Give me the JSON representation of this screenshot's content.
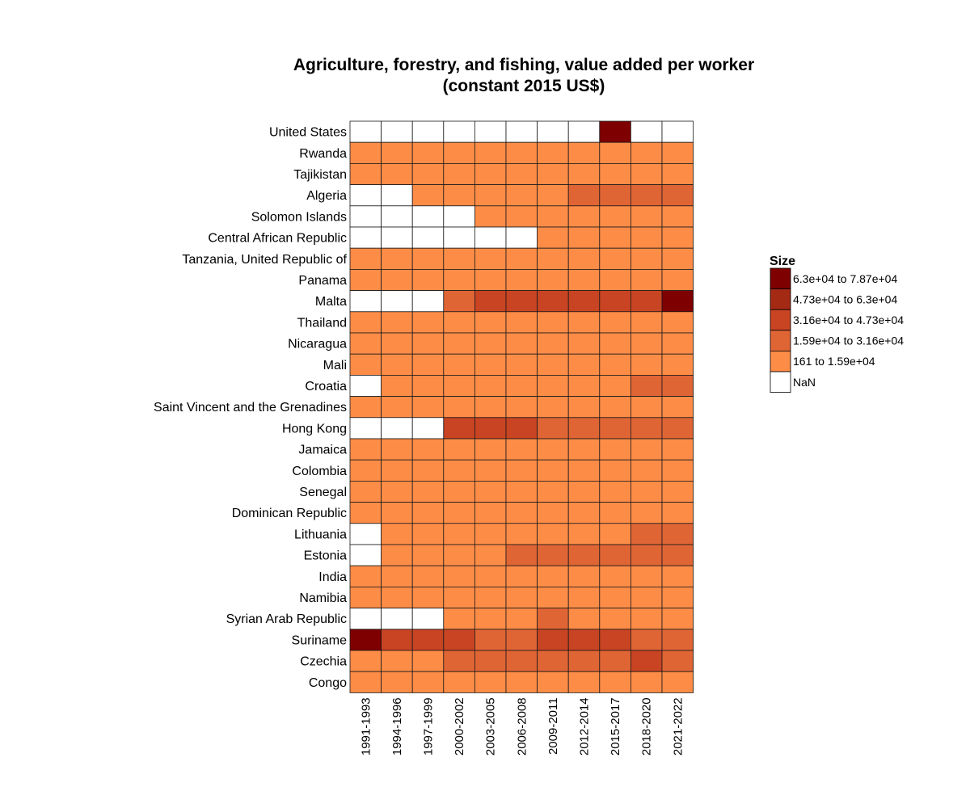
{
  "chart_data": {
    "type": "heatmap",
    "title_line1": "Agriculture, forestry, and fishing, value added per worker",
    "title_line2": "(constant 2015 US$)",
    "x_categories": [
      "1991-1993",
      "1994-1996",
      "1997-1999",
      "2000-2002",
      "2003-2005",
      "2006-2008",
      "2009-2011",
      "2012-2014",
      "2015-2017",
      "2018-2020",
      "2021-2022"
    ],
    "y_categories": [
      "United States",
      "Rwanda",
      "Tajikistan",
      "Algeria",
      "Solomon Islands",
      "Central African Republic",
      "Tanzania, United Republic of",
      "Panama",
      "Malta",
      "Thailand",
      "Nicaragua",
      "Mali",
      "Croatia",
      "Saint Vincent and the Grenadines",
      "Hong Kong",
      "Jamaica",
      "Colombia",
      "Senegal",
      "Dominican Republic",
      "Lithuania",
      "Estonia",
      "India",
      "Namibia",
      "Syrian Arab Republic",
      "Suriname",
      "Czechia",
      "Congo"
    ],
    "legend": {
      "title": "Size",
      "placement": "right",
      "bins": [
        {
          "label": "6.3e+04 to 7.87e+04",
          "color": "#7f0000"
        },
        {
          "label": "4.73e+04 to 6.3e+04",
          "color": "#a52a14"
        },
        {
          "label": "3.16e+04 to 4.73e+04",
          "color": "#c84422"
        },
        {
          "label": "1.59e+04 to 3.16e+04",
          "color": "#e06535"
        },
        {
          "label": "161 to 1.59e+04",
          "color": "#fd8c47"
        },
        {
          "label": "NaN",
          "color": "#ffffff"
        }
      ]
    },
    "bin_matrix": [
      [
        "NaN",
        "NaN",
        "NaN",
        "NaN",
        "NaN",
        "NaN",
        "NaN",
        "NaN",
        "6.3e+04 to 7.87e+04",
        "NaN",
        "NaN"
      ],
      [
        "161 to 1.59e+04",
        "161 to 1.59e+04",
        "161 to 1.59e+04",
        "161 to 1.59e+04",
        "161 to 1.59e+04",
        "161 to 1.59e+04",
        "161 to 1.59e+04",
        "161 to 1.59e+04",
        "161 to 1.59e+04",
        "161 to 1.59e+04",
        "161 to 1.59e+04"
      ],
      [
        "161 to 1.59e+04",
        "161 to 1.59e+04",
        "161 to 1.59e+04",
        "161 to 1.59e+04",
        "161 to 1.59e+04",
        "161 to 1.59e+04",
        "161 to 1.59e+04",
        "161 to 1.59e+04",
        "161 to 1.59e+04",
        "161 to 1.59e+04",
        "161 to 1.59e+04"
      ],
      [
        "NaN",
        "NaN",
        "161 to 1.59e+04",
        "161 to 1.59e+04",
        "161 to 1.59e+04",
        "161 to 1.59e+04",
        "161 to 1.59e+04",
        "1.59e+04 to 3.16e+04",
        "1.59e+04 to 3.16e+04",
        "1.59e+04 to 3.16e+04",
        "1.59e+04 to 3.16e+04"
      ],
      [
        "NaN",
        "NaN",
        "NaN",
        "NaN",
        "161 to 1.59e+04",
        "161 to 1.59e+04",
        "161 to 1.59e+04",
        "161 to 1.59e+04",
        "161 to 1.59e+04",
        "161 to 1.59e+04",
        "161 to 1.59e+04"
      ],
      [
        "NaN",
        "NaN",
        "NaN",
        "NaN",
        "NaN",
        "NaN",
        "161 to 1.59e+04",
        "161 to 1.59e+04",
        "161 to 1.59e+04",
        "161 to 1.59e+04",
        "161 to 1.59e+04"
      ],
      [
        "161 to 1.59e+04",
        "161 to 1.59e+04",
        "161 to 1.59e+04",
        "161 to 1.59e+04",
        "161 to 1.59e+04",
        "161 to 1.59e+04",
        "161 to 1.59e+04",
        "161 to 1.59e+04",
        "161 to 1.59e+04",
        "161 to 1.59e+04",
        "161 to 1.59e+04"
      ],
      [
        "161 to 1.59e+04",
        "161 to 1.59e+04",
        "161 to 1.59e+04",
        "161 to 1.59e+04",
        "161 to 1.59e+04",
        "161 to 1.59e+04",
        "161 to 1.59e+04",
        "161 to 1.59e+04",
        "161 to 1.59e+04",
        "161 to 1.59e+04",
        "161 to 1.59e+04"
      ],
      [
        "NaN",
        "NaN",
        "NaN",
        "1.59e+04 to 3.16e+04",
        "3.16e+04 to 4.73e+04",
        "3.16e+04 to 4.73e+04",
        "3.16e+04 to 4.73e+04",
        "3.16e+04 to 4.73e+04",
        "3.16e+04 to 4.73e+04",
        "3.16e+04 to 4.73e+04",
        "6.3e+04 to 7.87e+04"
      ],
      [
        "161 to 1.59e+04",
        "161 to 1.59e+04",
        "161 to 1.59e+04",
        "161 to 1.59e+04",
        "161 to 1.59e+04",
        "161 to 1.59e+04",
        "161 to 1.59e+04",
        "161 to 1.59e+04",
        "161 to 1.59e+04",
        "161 to 1.59e+04",
        "161 to 1.59e+04"
      ],
      [
        "161 to 1.59e+04",
        "161 to 1.59e+04",
        "161 to 1.59e+04",
        "161 to 1.59e+04",
        "161 to 1.59e+04",
        "161 to 1.59e+04",
        "161 to 1.59e+04",
        "161 to 1.59e+04",
        "161 to 1.59e+04",
        "161 to 1.59e+04",
        "161 to 1.59e+04"
      ],
      [
        "161 to 1.59e+04",
        "161 to 1.59e+04",
        "161 to 1.59e+04",
        "161 to 1.59e+04",
        "161 to 1.59e+04",
        "161 to 1.59e+04",
        "161 to 1.59e+04",
        "161 to 1.59e+04",
        "161 to 1.59e+04",
        "161 to 1.59e+04",
        "161 to 1.59e+04"
      ],
      [
        "NaN",
        "161 to 1.59e+04",
        "161 to 1.59e+04",
        "161 to 1.59e+04",
        "161 to 1.59e+04",
        "161 to 1.59e+04",
        "161 to 1.59e+04",
        "161 to 1.59e+04",
        "161 to 1.59e+04",
        "1.59e+04 to 3.16e+04",
        "1.59e+04 to 3.16e+04"
      ],
      [
        "161 to 1.59e+04",
        "161 to 1.59e+04",
        "161 to 1.59e+04",
        "161 to 1.59e+04",
        "161 to 1.59e+04",
        "161 to 1.59e+04",
        "161 to 1.59e+04",
        "161 to 1.59e+04",
        "161 to 1.59e+04",
        "161 to 1.59e+04",
        "161 to 1.59e+04"
      ],
      [
        "NaN",
        "NaN",
        "NaN",
        "3.16e+04 to 4.73e+04",
        "3.16e+04 to 4.73e+04",
        "3.16e+04 to 4.73e+04",
        "1.59e+04 to 3.16e+04",
        "1.59e+04 to 3.16e+04",
        "1.59e+04 to 3.16e+04",
        "1.59e+04 to 3.16e+04",
        "1.59e+04 to 3.16e+04"
      ],
      [
        "161 to 1.59e+04",
        "161 to 1.59e+04",
        "161 to 1.59e+04",
        "161 to 1.59e+04",
        "161 to 1.59e+04",
        "161 to 1.59e+04",
        "161 to 1.59e+04",
        "161 to 1.59e+04",
        "161 to 1.59e+04",
        "161 to 1.59e+04",
        "161 to 1.59e+04"
      ],
      [
        "161 to 1.59e+04",
        "161 to 1.59e+04",
        "161 to 1.59e+04",
        "161 to 1.59e+04",
        "161 to 1.59e+04",
        "161 to 1.59e+04",
        "161 to 1.59e+04",
        "161 to 1.59e+04",
        "161 to 1.59e+04",
        "161 to 1.59e+04",
        "161 to 1.59e+04"
      ],
      [
        "161 to 1.59e+04",
        "161 to 1.59e+04",
        "161 to 1.59e+04",
        "161 to 1.59e+04",
        "161 to 1.59e+04",
        "161 to 1.59e+04",
        "161 to 1.59e+04",
        "161 to 1.59e+04",
        "161 to 1.59e+04",
        "161 to 1.59e+04",
        "161 to 1.59e+04"
      ],
      [
        "161 to 1.59e+04",
        "161 to 1.59e+04",
        "161 to 1.59e+04",
        "161 to 1.59e+04",
        "161 to 1.59e+04",
        "161 to 1.59e+04",
        "161 to 1.59e+04",
        "161 to 1.59e+04",
        "161 to 1.59e+04",
        "161 to 1.59e+04",
        "161 to 1.59e+04"
      ],
      [
        "NaN",
        "161 to 1.59e+04",
        "161 to 1.59e+04",
        "161 to 1.59e+04",
        "161 to 1.59e+04",
        "161 to 1.59e+04",
        "161 to 1.59e+04",
        "161 to 1.59e+04",
        "161 to 1.59e+04",
        "1.59e+04 to 3.16e+04",
        "1.59e+04 to 3.16e+04"
      ],
      [
        "NaN",
        "161 to 1.59e+04",
        "161 to 1.59e+04",
        "161 to 1.59e+04",
        "161 to 1.59e+04",
        "1.59e+04 to 3.16e+04",
        "1.59e+04 to 3.16e+04",
        "1.59e+04 to 3.16e+04",
        "1.59e+04 to 3.16e+04",
        "1.59e+04 to 3.16e+04",
        "1.59e+04 to 3.16e+04"
      ],
      [
        "161 to 1.59e+04",
        "161 to 1.59e+04",
        "161 to 1.59e+04",
        "161 to 1.59e+04",
        "161 to 1.59e+04",
        "161 to 1.59e+04",
        "161 to 1.59e+04",
        "161 to 1.59e+04",
        "161 to 1.59e+04",
        "161 to 1.59e+04",
        "161 to 1.59e+04"
      ],
      [
        "161 to 1.59e+04",
        "161 to 1.59e+04",
        "161 to 1.59e+04",
        "161 to 1.59e+04",
        "161 to 1.59e+04",
        "161 to 1.59e+04",
        "161 to 1.59e+04",
        "161 to 1.59e+04",
        "161 to 1.59e+04",
        "161 to 1.59e+04",
        "161 to 1.59e+04"
      ],
      [
        "NaN",
        "NaN",
        "NaN",
        "161 to 1.59e+04",
        "161 to 1.59e+04",
        "161 to 1.59e+04",
        "1.59e+04 to 3.16e+04",
        "161 to 1.59e+04",
        "161 to 1.59e+04",
        "161 to 1.59e+04",
        "161 to 1.59e+04"
      ],
      [
        "6.3e+04 to 7.87e+04",
        "3.16e+04 to 4.73e+04",
        "3.16e+04 to 4.73e+04",
        "3.16e+04 to 4.73e+04",
        "1.59e+04 to 3.16e+04",
        "1.59e+04 to 3.16e+04",
        "3.16e+04 to 4.73e+04",
        "3.16e+04 to 4.73e+04",
        "3.16e+04 to 4.73e+04",
        "1.59e+04 to 3.16e+04",
        "1.59e+04 to 3.16e+04"
      ],
      [
        "161 to 1.59e+04",
        "161 to 1.59e+04",
        "161 to 1.59e+04",
        "1.59e+04 to 3.16e+04",
        "1.59e+04 to 3.16e+04",
        "1.59e+04 to 3.16e+04",
        "1.59e+04 to 3.16e+04",
        "1.59e+04 to 3.16e+04",
        "1.59e+04 to 3.16e+04",
        "3.16e+04 to 4.73e+04",
        "1.59e+04 to 3.16e+04"
      ],
      [
        "161 to 1.59e+04",
        "161 to 1.59e+04",
        "161 to 1.59e+04",
        "161 to 1.59e+04",
        "161 to 1.59e+04",
        "161 to 1.59e+04",
        "161 to 1.59e+04",
        "161 to 1.59e+04",
        "161 to 1.59e+04",
        "161 to 1.59e+04",
        "161 to 1.59e+04"
      ]
    ]
  }
}
